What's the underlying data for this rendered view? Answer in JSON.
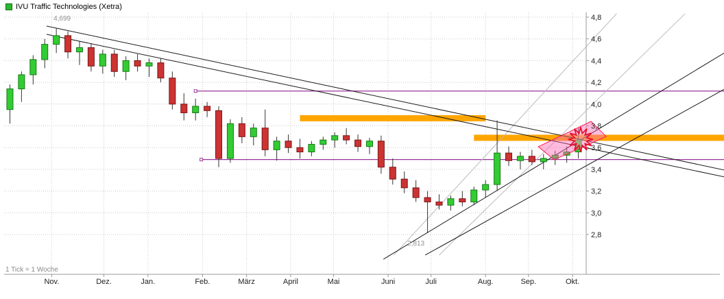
{
  "legend": {
    "title": "IVU Traffic Technologies (Xetra)",
    "marker_color": "#2db82d"
  },
  "footer": {
    "tick_info": "1 Tick = 1 Woche"
  },
  "colors": {
    "up": "#33cc33",
    "up_border": "#157a15",
    "down": "#cc3333",
    "down_border": "#7a1515",
    "wick": "#333333",
    "grid": "#c9c9c9",
    "axis": "#999999",
    "zone": "#ffa500",
    "hline": "#993399",
    "trend": "#1a1a1a",
    "gray_line": "#bbbbbb",
    "highlight_fill": "rgba(255,105,180,0.45)",
    "highlight_stroke": "#ff1a4b",
    "star": "#e8112d",
    "annotation": "#909090",
    "tick_text": "#222222"
  },
  "chart_data": {
    "type": "candlestick",
    "title": "IVU Traffic Technologies (Xetra)",
    "interval": "1 Tick = 1 Woche",
    "ylim": [
      2.8,
      4.8
    ],
    "grid": true,
    "y_ticks": [
      {
        "label": "4,8",
        "value": 4.8
      },
      {
        "label": "4,6",
        "value": 4.6
      },
      {
        "label": "4,4",
        "value": 4.4
      },
      {
        "label": "4,2",
        "value": 4.2
      },
      {
        "label": "4,0",
        "value": 4.0
      },
      {
        "label": "3,8",
        "value": 3.8
      },
      {
        "label": "3,6",
        "value": 3.6
      },
      {
        "label": "3,4",
        "value": 3.4
      },
      {
        "label": "3,2",
        "value": 3.2
      },
      {
        "label": "3,0",
        "value": 3.0
      },
      {
        "label": "2,8",
        "value": 2.8
      }
    ],
    "x_ticks": [
      {
        "label": "Nov.",
        "week": 3.6
      },
      {
        "label": "Dez.",
        "week": 8.1
      },
      {
        "label": "Jan.",
        "week": 11.9
      },
      {
        "label": "Feb.",
        "week": 16.6
      },
      {
        "label": "März",
        "week": 20.4
      },
      {
        "label": "April",
        "week": 24.2
      },
      {
        "label": "Mai",
        "week": 27.9
      },
      {
        "label": "Juni",
        "week": 32.6
      },
      {
        "label": "Juli",
        "week": 36.3
      },
      {
        "label": "Aug.",
        "week": 41.0
      },
      {
        "label": "Sep.",
        "week": 44.7
      },
      {
        "label": "Okt.",
        "week": 48.5
      }
    ],
    "candles": [
      {
        "o": 3.95,
        "h": 4.18,
        "l": 3.82,
        "c": 4.14
      },
      {
        "o": 4.14,
        "h": 4.3,
        "l": 4.02,
        "c": 4.27
      },
      {
        "o": 4.27,
        "h": 4.45,
        "l": 4.18,
        "c": 4.41
      },
      {
        "o": 4.41,
        "h": 4.6,
        "l": 4.33,
        "c": 4.55
      },
      {
        "o": 4.55,
        "h": 4.699,
        "l": 4.47,
        "c": 4.63
      },
      {
        "o": 4.63,
        "h": 4.67,
        "l": 4.42,
        "c": 4.48
      },
      {
        "o": 4.48,
        "h": 4.58,
        "l": 4.36,
        "c": 4.52
      },
      {
        "o": 4.52,
        "h": 4.56,
        "l": 4.3,
        "c": 4.35
      },
      {
        "o": 4.35,
        "h": 4.5,
        "l": 4.28,
        "c": 4.46
      },
      {
        "o": 4.46,
        "h": 4.5,
        "l": 4.25,
        "c": 4.3
      },
      {
        "o": 4.3,
        "h": 4.44,
        "l": 4.22,
        "c": 4.4
      },
      {
        "o": 4.4,
        "h": 4.46,
        "l": 4.3,
        "c": 4.35
      },
      {
        "o": 4.35,
        "h": 4.42,
        "l": 4.25,
        "c": 4.38
      },
      {
        "o": 4.38,
        "h": 4.42,
        "l": 4.2,
        "c": 4.24
      },
      {
        "o": 4.24,
        "h": 4.3,
        "l": 3.95,
        "c": 4.0
      },
      {
        "o": 4.0,
        "h": 4.1,
        "l": 3.85,
        "c": 3.92
      },
      {
        "o": 3.92,
        "h": 4.05,
        "l": 3.85,
        "c": 3.98
      },
      {
        "o": 3.98,
        "h": 4.02,
        "l": 3.88,
        "c": 3.94
      },
      {
        "o": 3.94,
        "h": 3.98,
        "l": 3.42,
        "c": 3.5
      },
      {
        "o": 3.5,
        "h": 3.86,
        "l": 3.46,
        "c": 3.82
      },
      {
        "o": 3.82,
        "h": 3.88,
        "l": 3.64,
        "c": 3.7
      },
      {
        "o": 3.7,
        "h": 3.82,
        "l": 3.62,
        "c": 3.78
      },
      {
        "o": 3.78,
        "h": 3.95,
        "l": 3.52,
        "c": 3.58
      },
      {
        "o": 3.58,
        "h": 3.7,
        "l": 3.48,
        "c": 3.66
      },
      {
        "o": 3.66,
        "h": 3.72,
        "l": 3.55,
        "c": 3.6
      },
      {
        "o": 3.6,
        "h": 3.68,
        "l": 3.5,
        "c": 3.56
      },
      {
        "o": 3.56,
        "h": 3.66,
        "l": 3.52,
        "c": 3.63
      },
      {
        "o": 3.63,
        "h": 3.7,
        "l": 3.58,
        "c": 3.67
      },
      {
        "o": 3.67,
        "h": 3.74,
        "l": 3.6,
        "c": 3.71
      },
      {
        "o": 3.71,
        "h": 3.78,
        "l": 3.63,
        "c": 3.67
      },
      {
        "o": 3.67,
        "h": 3.72,
        "l": 3.56,
        "c": 3.61
      },
      {
        "o": 3.61,
        "h": 3.69,
        "l": 3.54,
        "c": 3.66
      },
      {
        "o": 3.66,
        "h": 3.71,
        "l": 3.36,
        "c": 3.42
      },
      {
        "o": 3.42,
        "h": 3.5,
        "l": 3.26,
        "c": 3.31
      },
      {
        "o": 3.31,
        "h": 3.38,
        "l": 3.18,
        "c": 3.23
      },
      {
        "o": 3.23,
        "h": 3.3,
        "l": 3.1,
        "c": 3.14
      },
      {
        "o": 3.14,
        "h": 3.2,
        "l": 2.813,
        "c": 3.1
      },
      {
        "o": 3.1,
        "h": 3.17,
        "l": 3.03,
        "c": 3.07
      },
      {
        "o": 3.07,
        "h": 3.16,
        "l": 3.02,
        "c": 3.13
      },
      {
        "o": 3.13,
        "h": 3.2,
        "l": 3.06,
        "c": 3.1
      },
      {
        "o": 3.1,
        "h": 3.24,
        "l": 3.07,
        "c": 3.21
      },
      {
        "o": 3.21,
        "h": 3.3,
        "l": 3.14,
        "c": 3.26
      },
      {
        "o": 3.26,
        "h": 3.85,
        "l": 3.2,
        "c": 3.55
      },
      {
        "o": 3.55,
        "h": 3.61,
        "l": 3.43,
        "c": 3.48
      },
      {
        "o": 3.48,
        "h": 3.56,
        "l": 3.4,
        "c": 3.52
      },
      {
        "o": 3.52,
        "h": 3.58,
        "l": 3.44,
        "c": 3.47
      },
      {
        "o": 3.47,
        "h": 3.54,
        "l": 3.4,
        "c": 3.5
      },
      {
        "o": 3.5,
        "h": 3.57,
        "l": 3.44,
        "c": 3.53
      },
      {
        "o": 3.53,
        "h": 3.61,
        "l": 3.46,
        "c": 3.56
      },
      {
        "o": 3.56,
        "h": 3.78,
        "l": 3.5,
        "c": 3.67
      }
    ],
    "annotations": [
      {
        "text": "4,699",
        "week": 4.5,
        "price": 4.77
      },
      {
        "text": "2,813",
        "week": 35.0,
        "price": 2.7
      }
    ],
    "zones": [
      {
        "price": 3.87,
        "from_week": 25.0,
        "to_week": 41.0
      },
      {
        "price": 3.69,
        "from_week": 40.0,
        "to_week": 999
      }
    ],
    "hlines": [
      {
        "price": 4.12,
        "from_week": 16.0
      },
      {
        "price": 3.49,
        "from_week": 16.5
      }
    ],
    "gray_lines": [
      {
        "w1": 33.1,
        "p1": 2.611,
        "w2": 52.3,
        "p2": 4.832
      },
      {
        "w1": 37.0,
        "p1": 2.611,
        "w2": 58.2,
        "p2": 4.832
      }
    ],
    "trendlines": [
      {
        "w1": 3.16,
        "p1": 4.718,
        "w2": 61.6,
        "p2": 3.393
      },
      {
        "w1": 3.16,
        "p1": 4.642,
        "w2": 61.6,
        "p2": 3.33
      },
      {
        "w1": 32.2,
        "p1": 2.573,
        "w2": 61.6,
        "p2": 4.472
      },
      {
        "w1": 35.8,
        "p1": 2.611,
        "w2": 61.6,
        "p2": 4.138
      }
    ],
    "highlight_polygon": [
      [
        45.55,
        3.608
      ],
      [
        50.1,
        3.841
      ],
      [
        51.4,
        3.702
      ],
      [
        46.91,
        3.488
      ]
    ],
    "star": {
      "week": 49.2,
      "price": 3.675
    }
  }
}
